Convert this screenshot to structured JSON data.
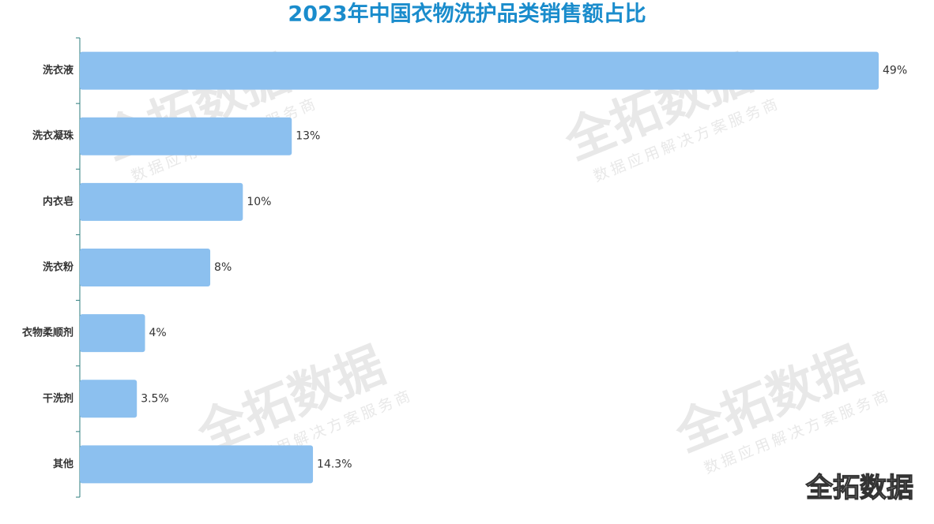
{
  "chart_data": {
    "type": "bar",
    "orientation": "horizontal",
    "title": "2023年中国衣物洗护品类销售额占比",
    "categories": [
      "洗衣液",
      "洗衣凝珠",
      "内衣皂",
      "洗衣粉",
      "衣物柔顺剂",
      "干洗剂",
      "其他"
    ],
    "values": [
      49,
      13,
      10,
      8,
      4,
      3.5,
      14.3
    ],
    "value_labels": [
      "49%",
      "13%",
      "10%",
      "8%",
      "4%",
      "3.5%",
      "14.3%"
    ],
    "color": "#8cc0ef"
  },
  "watermark": {
    "brand": "全拓数据",
    "slogan": "数据应用解决方案服务商"
  },
  "logo": "全拓数据"
}
